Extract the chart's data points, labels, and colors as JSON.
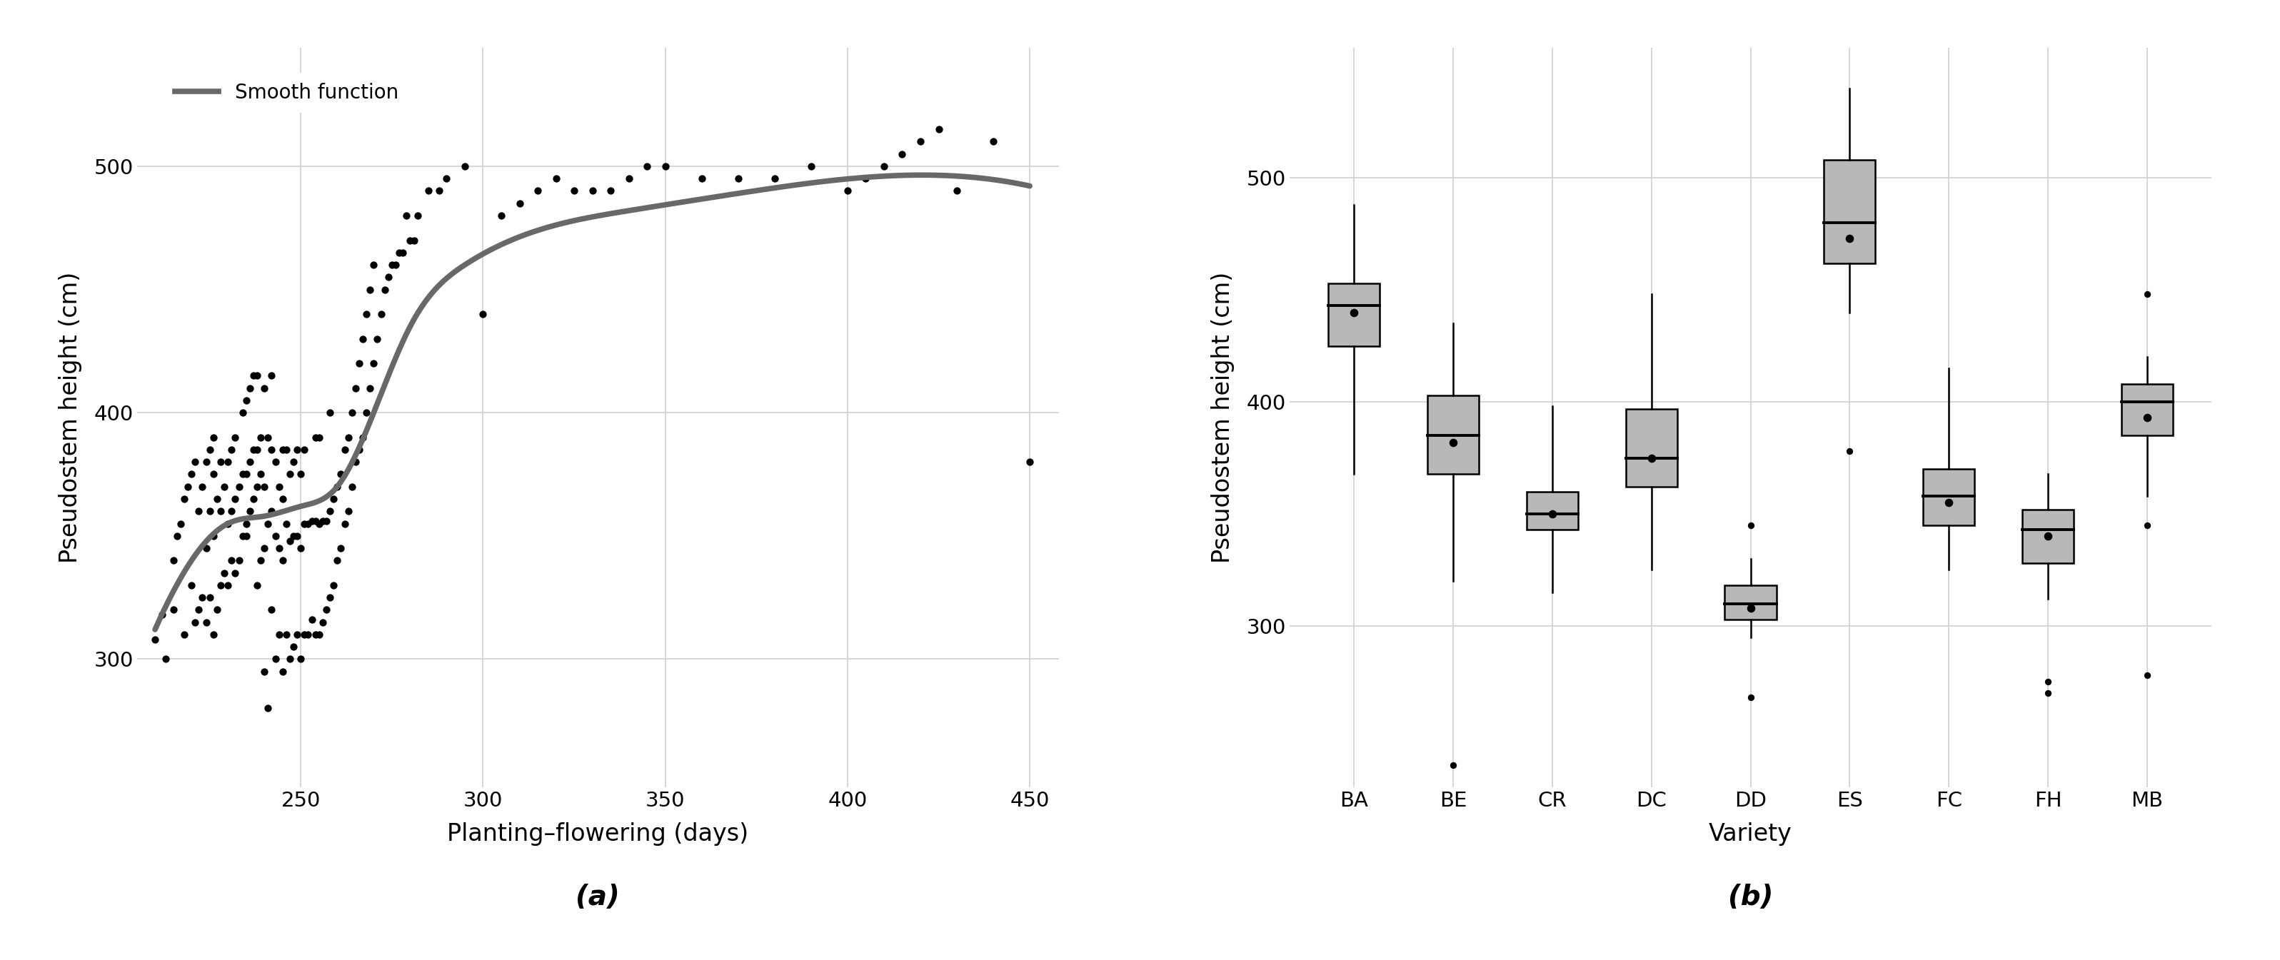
{
  "scatter_x": [
    210,
    212,
    213,
    215,
    215,
    216,
    217,
    218,
    218,
    219,
    220,
    220,
    221,
    221,
    222,
    222,
    223,
    223,
    224,
    224,
    224,
    225,
    225,
    225,
    226,
    226,
    226,
    226,
    227,
    227,
    228,
    228,
    228,
    229,
    229,
    230,
    230,
    230,
    231,
    231,
    231,
    232,
    232,
    232,
    233,
    233,
    234,
    234,
    234,
    235,
    235,
    235,
    235,
    236,
    236,
    236,
    237,
    237,
    237,
    238,
    238,
    238,
    238,
    239,
    239,
    239,
    240,
    240,
    240,
    240,
    241,
    241,
    241,
    242,
    242,
    242,
    242,
    243,
    243,
    243,
    244,
    244,
    244,
    245,
    245,
    245,
    245,
    246,
    246,
    246,
    247,
    247,
    247,
    248,
    248,
    248,
    249,
    249,
    249,
    250,
    250,
    250,
    251,
    251,
    251,
    252,
    252,
    253,
    253,
    254,
    254,
    254,
    255,
    255,
    255,
    256,
    256,
    257,
    257,
    258,
    258,
    258,
    259,
    259,
    260,
    260,
    261,
    261,
    262,
    262,
    263,
    263,
    264,
    264,
    265,
    265,
    266,
    266,
    267,
    267,
    268,
    268,
    269,
    269,
    270,
    270,
    271,
    272,
    273,
    274,
    275,
    276,
    277,
    278,
    279,
    280,
    281,
    282,
    285,
    288,
    290,
    295,
    300,
    305,
    310,
    315,
    320,
    325,
    330,
    335,
    340,
    345,
    350,
    360,
    370,
    380,
    390,
    400,
    405,
    410,
    415,
    420,
    425,
    430,
    440,
    450
  ],
  "scatter_y": [
    308,
    318,
    300,
    320,
    340,
    350,
    355,
    365,
    310,
    370,
    330,
    375,
    315,
    380,
    320,
    360,
    325,
    370,
    315,
    345,
    380,
    325,
    360,
    385,
    310,
    350,
    375,
    390,
    320,
    365,
    330,
    360,
    380,
    335,
    370,
    330,
    355,
    380,
    340,
    360,
    385,
    335,
    365,
    390,
    340,
    370,
    350,
    375,
    400,
    355,
    375,
    405,
    350,
    360,
    380,
    410,
    365,
    385,
    415,
    330,
    370,
    385,
    415,
    340,
    375,
    390,
    295,
    345,
    370,
    410,
    280,
    355,
    390,
    320,
    360,
    385,
    415,
    300,
    350,
    380,
    310,
    345,
    370,
    295,
    340,
    365,
    385,
    310,
    355,
    385,
    300,
    348,
    375,
    305,
    350,
    380,
    310,
    350,
    385,
    300,
    345,
    375,
    310,
    355,
    385,
    310,
    355,
    316,
    356,
    310,
    356,
    390,
    310,
    355,
    390,
    315,
    356,
    320,
    356,
    325,
    360,
    400,
    330,
    365,
    340,
    370,
    345,
    375,
    355,
    385,
    360,
    390,
    370,
    400,
    380,
    410,
    385,
    420,
    390,
    430,
    400,
    440,
    410,
    450,
    420,
    460,
    430,
    440,
    450,
    455,
    460,
    460,
    465,
    465,
    480,
    470,
    470,
    480,
    490,
    490,
    495,
    500,
    440,
    480,
    485,
    490,
    495,
    490,
    490,
    490,
    495,
    500,
    500,
    495,
    495,
    495,
    500,
    490,
    495,
    500,
    505,
    510,
    515,
    490,
    510,
    380
  ],
  "smooth_x": [
    210,
    220,
    230,
    240,
    250,
    260,
    270,
    280,
    295,
    315,
    340,
    370,
    410,
    450
  ],
  "smooth_y": [
    312,
    340,
    355,
    358,
    362,
    370,
    400,
    435,
    460,
    474,
    482,
    489,
    496,
    492
  ],
  "scatter_color": "#000000",
  "smooth_color": "#686868",
  "smooth_linewidth": 5.5,
  "scatter_size": 55,
  "left_xlim": [
    205,
    458
  ],
  "left_ylim": [
    248,
    548
  ],
  "left_xticks": [
    250,
    300,
    350,
    400,
    450
  ],
  "left_yticks": [
    300,
    400,
    500
  ],
  "left_xlabel": "Planting–flowering (days)",
  "left_ylabel": "Pseudostem height (cm)",
  "left_label_a": "(a)",
  "right_label_b": "(b)",
  "legend_label": "Smooth function",
  "box_varieties": [
    "BA",
    "BE",
    "CR",
    "DC",
    "DD",
    "ES",
    "FC",
    "FH",
    "MB"
  ],
  "box_data": {
    "BA": {
      "q1": 425,
      "median": 443,
      "q3": 453,
      "whisker_low": 368,
      "whisker_high": 488,
      "mean": 440,
      "outliers": []
    },
    "BE": {
      "q1": 368,
      "median": 385,
      "q3": 403,
      "whisker_low": 320,
      "whisker_high": 435,
      "mean": 382,
      "outliers": [
        238
      ]
    },
    "CR": {
      "q1": 343,
      "median": 350,
      "q3": 360,
      "whisker_low": 315,
      "whisker_high": 398,
      "mean": 350,
      "outliers": []
    },
    "DC": {
      "q1": 362,
      "median": 375,
      "q3": 397,
      "whisker_low": 325,
      "whisker_high": 448,
      "mean": 375,
      "outliers": []
    },
    "DD": {
      "q1": 303,
      "median": 310,
      "q3": 318,
      "whisker_low": 295,
      "whisker_high": 330,
      "mean": 308,
      "outliers": [
        268,
        345
      ]
    },
    "ES": {
      "q1": 462,
      "median": 480,
      "q3": 508,
      "whisker_low": 440,
      "whisker_high": 540,
      "mean": 473,
      "outliers": [
        378
      ]
    },
    "FC": {
      "q1": 345,
      "median": 358,
      "q3": 370,
      "whisker_low": 325,
      "whisker_high": 415,
      "mean": 355,
      "outliers": []
    },
    "FH": {
      "q1": 328,
      "median": 343,
      "q3": 352,
      "whisker_low": 312,
      "whisker_high": 368,
      "mean": 340,
      "outliers": [
        270,
        275
      ]
    },
    "MB": {
      "q1": 385,
      "median": 400,
      "q3": 408,
      "whisker_low": 358,
      "whisker_high": 420,
      "mean": 393,
      "outliers": [
        278,
        345,
        448
      ]
    }
  },
  "box_color": "#b8b8b8",
  "box_linecolor": "#000000",
  "right_ylim": [
    228,
    558
  ],
  "right_yticks": [
    300,
    400,
    500
  ],
  "right_xlabel": "Variety",
  "right_ylabel": "Pseudostem height (cm)",
  "bg_color": "#ffffff",
  "grid_color": "#d0d0d0"
}
